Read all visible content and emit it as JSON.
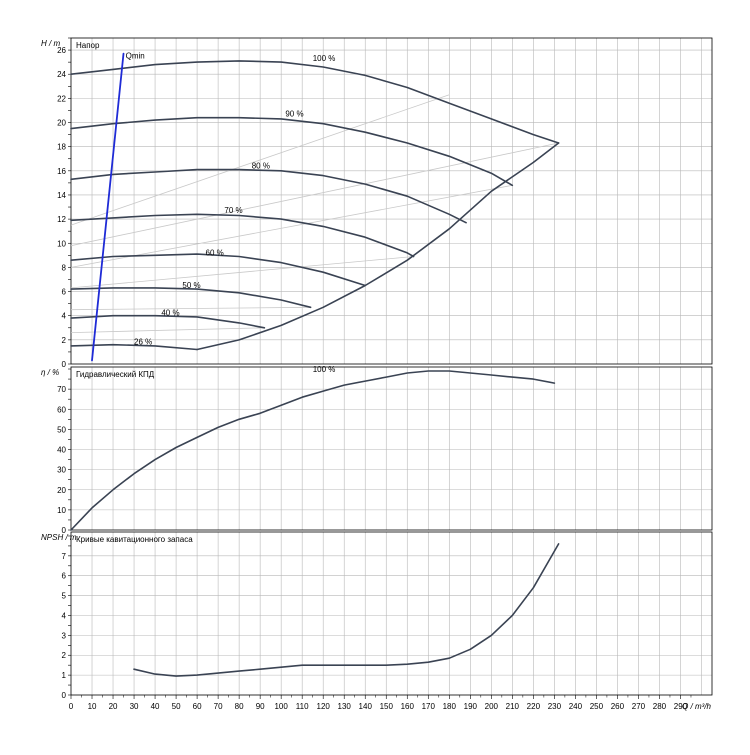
{
  "chart_data": [
    {
      "type": "line",
      "title": "Напор",
      "ylabel": "H / m",
      "xlabel": "Q / m³/h",
      "xlim": [
        0,
        305
      ],
      "ylim": [
        0,
        27
      ],
      "yticks": [
        0,
        2,
        4,
        6,
        8,
        10,
        12,
        14,
        16,
        18,
        20,
        22,
        24,
        26
      ],
      "grid": true,
      "series": [
        {
          "name": "100 %",
          "x": [
            0,
            20,
            40,
            60,
            80,
            100,
            120,
            140,
            160,
            180,
            200,
            220,
            232
          ],
          "y": [
            24.0,
            24.4,
            24.8,
            25.0,
            25.1,
            25.0,
            24.6,
            23.9,
            22.9,
            21.6,
            20.3,
            19.0,
            18.3
          ]
        },
        {
          "name": "90 %",
          "x": [
            0,
            20,
            40,
            60,
            80,
            100,
            120,
            140,
            160,
            180,
            200,
            210
          ],
          "y": [
            19.5,
            19.9,
            20.2,
            20.4,
            20.4,
            20.3,
            19.9,
            19.2,
            18.3,
            17.2,
            15.8,
            14.8
          ]
        },
        {
          "name": "80 %",
          "x": [
            0,
            20,
            40,
            60,
            80,
            100,
            120,
            140,
            160,
            180,
            188
          ],
          "y": [
            15.3,
            15.7,
            15.9,
            16.1,
            16.1,
            16.0,
            15.6,
            14.9,
            13.9,
            12.4,
            11.7
          ]
        },
        {
          "name": "70 %",
          "x": [
            0,
            20,
            40,
            60,
            80,
            100,
            120,
            140,
            160,
            163
          ],
          "y": [
            11.9,
            12.1,
            12.3,
            12.4,
            12.3,
            12.0,
            11.4,
            10.5,
            9.2,
            8.9
          ]
        },
        {
          "name": "60 %",
          "x": [
            0,
            20,
            40,
            60,
            80,
            100,
            120,
            140
          ],
          "y": [
            8.6,
            8.9,
            9.0,
            9.1,
            8.9,
            8.4,
            7.6,
            6.5
          ]
        },
        {
          "name": "50 %",
          "x": [
            0,
            20,
            40,
            60,
            80,
            100,
            114
          ],
          "y": [
            6.2,
            6.3,
            6.3,
            6.2,
            5.9,
            5.3,
            4.7
          ]
        },
        {
          "name": "40 %",
          "x": [
            0,
            20,
            40,
            60,
            80,
            92
          ],
          "y": [
            3.8,
            4.0,
            4.0,
            3.9,
            3.4,
            3.0
          ]
        },
        {
          "name": "26 %",
          "x": [
            0,
            20,
            40,
            60
          ],
          "y": [
            1.5,
            1.6,
            1.5,
            1.2
          ]
        },
        {
          "name": "envelope",
          "x": [
            60,
            80,
            100,
            120,
            140,
            160,
            180,
            200,
            220,
            232
          ],
          "y": [
            1.2,
            2.0,
            3.2,
            4.7,
            6.5,
            8.6,
            11.2,
            14.3,
            16.7,
            18.3
          ]
        },
        {
          "name": "Qmin",
          "x": [
            10,
            25
          ],
          "y": [
            0.3,
            25.7
          ]
        }
      ],
      "efficiency_lines": [
        {
          "x": [
            0,
            180
          ],
          "y": [
            11.5,
            22.3
          ]
        },
        {
          "x": [
            0,
            232
          ],
          "y": [
            9.8,
            18.3
          ]
        },
        {
          "x": [
            0,
            210
          ],
          "y": [
            8.0,
            14.8
          ]
        },
        {
          "x": [
            0,
            163
          ],
          "y": [
            6.3,
            8.9
          ]
        },
        {
          "x": [
            0,
            114
          ],
          "y": [
            4.5,
            4.7
          ]
        },
        {
          "x": [
            0,
            92
          ],
          "y": [
            2.6,
            3.0
          ]
        }
      ],
      "annotations": [
        {
          "text": "Qmin",
          "x": 26,
          "y": 25.3
        },
        {
          "text": "100 %",
          "x": 115,
          "y": 25.1
        },
        {
          "text": "90 %",
          "x": 102,
          "y": 20.5
        },
        {
          "text": "80 %",
          "x": 86,
          "y": 16.2
        },
        {
          "text": "70 %",
          "x": 73,
          "y": 12.5
        },
        {
          "text": "60 %",
          "x": 64,
          "y": 9.0
        },
        {
          "text": "50 %",
          "x": 53,
          "y": 6.3
        },
        {
          "text": "40 %",
          "x": 43,
          "y": 4.0
        },
        {
          "text": "26 %",
          "x": 30,
          "y": 1.6
        }
      ]
    },
    {
      "type": "line",
      "title": "Гидравлический КПД",
      "ylabel": "η / %",
      "xlim": [
        0,
        305
      ],
      "ylim": [
        0,
        81
      ],
      "yticks": [
        0,
        10,
        20,
        30,
        40,
        50,
        60,
        70
      ],
      "grid": true,
      "series": [
        {
          "name": "100 %",
          "x": [
            0,
            10,
            20,
            30,
            40,
            50,
            60,
            70,
            80,
            90,
            100,
            110,
            120,
            130,
            140,
            150,
            160,
            170,
            180,
            190,
            200,
            210,
            220,
            230
          ],
          "y": [
            0,
            11,
            20,
            28,
            35,
            41,
            46,
            51,
            55,
            58,
            62,
            66,
            69,
            72,
            74,
            76,
            78,
            79,
            79,
            78,
            77,
            76,
            75,
            73
          ]
        }
      ],
      "annotations": [
        {
          "text": "100 %",
          "x": 115,
          "y": 78.5
        }
      ]
    },
    {
      "type": "line",
      "title": "Кривые кавитационного запаса",
      "ylabel": "NPSH / m",
      "xlabel": "Q / m³/h",
      "xlim": [
        0,
        305
      ],
      "ylim": [
        0,
        8.2
      ],
      "yticks": [
        0,
        1,
        2,
        3,
        4,
        5,
        6,
        7
      ],
      "grid": true,
      "series": [
        {
          "name": "NPSH",
          "x": [
            30,
            40,
            50,
            60,
            70,
            80,
            90,
            100,
            110,
            120,
            130,
            140,
            150,
            160,
            170,
            180,
            190,
            200,
            210,
            220,
            232
          ],
          "y": [
            1.3,
            1.05,
            0.95,
            1.0,
            1.1,
            1.2,
            1.3,
            1.4,
            1.5,
            1.5,
            1.5,
            1.5,
            1.5,
            1.55,
            1.65,
            1.85,
            2.3,
            3.0,
            4.0,
            5.4,
            7.6
          ]
        }
      ]
    }
  ],
  "x_axis": {
    "ticks": [
      0,
      10,
      20,
      30,
      40,
      50,
      60,
      70,
      80,
      90,
      100,
      110,
      120,
      130,
      140,
      150,
      160,
      170,
      180,
      190,
      200,
      210,
      220,
      230,
      240,
      250,
      260,
      270,
      280,
      290
    ],
    "label": "Q / m³/h"
  },
  "colors": {
    "curve": "#3a4353",
    "qmin": "#1f2bd6",
    "grid": "#b8b8b8",
    "efficiency_line": "#c9c9c9",
    "axis": "#000000"
  }
}
